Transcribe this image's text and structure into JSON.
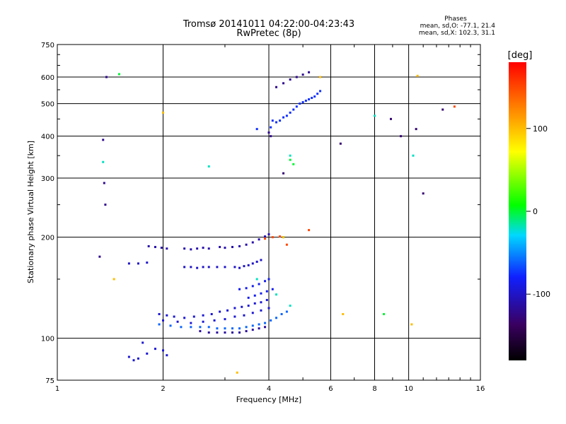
{
  "title": {
    "line1": "Tromsø 20141011 04:22:00-04:23:43",
    "line2": "RwPretec (8p)"
  },
  "stats": {
    "heading": "Phases",
    "line_o": "mean, sd,O: -77.1, 21.4",
    "line_x": "mean, sd,X: 102.3, 31.1"
  },
  "colorbar": {
    "unit_label": "[deg]",
    "ticks": [
      {
        "value": 100,
        "label": "100"
      },
      {
        "value": 0,
        "label": "0"
      },
      {
        "value": -100,
        "label": "-100"
      }
    ],
    "range": [
      -180,
      180
    ],
    "colors": [
      "#000000",
      "#3a0060",
      "#1020ff",
      "#00d8ff",
      "#00ff00",
      "#ffff00",
      "#ff8000",
      "#ff0000"
    ]
  },
  "chart_data": {
    "type": "scatter",
    "xlabel": "Frequency [MHz]",
    "ylabel": "Stationary phase Virtual Height [km]",
    "xscale": "log",
    "yscale": "log",
    "xlim": [
      1,
      16
    ],
    "ylim": [
      75,
      750
    ],
    "x_ticks": [
      1,
      2,
      4,
      6,
      8,
      10,
      16
    ],
    "y_ticks": [
      75,
      100,
      200,
      300,
      400,
      500,
      600,
      750
    ],
    "x_grid": [
      2,
      4,
      6,
      8,
      10
    ],
    "y_grid": [
      100,
      200,
      300,
      400,
      500,
      600
    ],
    "grid": true,
    "series": [
      {
        "phase": -95,
        "points": [
          [
            1.95,
            118
          ],
          [
            2.05,
            117
          ],
          [
            2.15,
            116
          ],
          [
            2.3,
            115
          ],
          [
            2.45,
            116
          ],
          [
            2.6,
            117
          ],
          [
            2.75,
            118
          ],
          [
            2.9,
            120
          ],
          [
            3.05,
            121
          ],
          [
            3.2,
            123
          ],
          [
            3.35,
            124
          ],
          [
            3.5,
            125
          ],
          [
            3.65,
            127
          ],
          [
            3.8,
            128
          ],
          [
            3.95,
            130
          ],
          [
            2.0,
            113
          ],
          [
            2.2,
            112
          ],
          [
            2.4,
            111
          ],
          [
            2.6,
            112
          ],
          [
            2.8,
            113
          ],
          [
            3.0,
            114
          ],
          [
            3.2,
            116
          ],
          [
            3.4,
            117
          ],
          [
            3.6,
            119
          ],
          [
            3.8,
            121
          ],
          [
            4.0,
            123
          ]
        ]
      },
      {
        "phase": -60,
        "points": [
          [
            1.95,
            110
          ],
          [
            2.1,
            109
          ],
          [
            2.25,
            108
          ],
          [
            2.4,
            108
          ],
          [
            2.55,
            108
          ],
          [
            2.7,
            108
          ],
          [
            2.85,
            107
          ],
          [
            3.0,
            107
          ],
          [
            3.15,
            107
          ],
          [
            3.3,
            107
          ],
          [
            3.45,
            108
          ],
          [
            3.6,
            109
          ],
          [
            3.75,
            110
          ],
          [
            3.9,
            111
          ],
          [
            4.05,
            113
          ],
          [
            4.2,
            115
          ],
          [
            4.35,
            118
          ],
          [
            4.5,
            120
          ]
        ]
      },
      {
        "phase": -115,
        "points": [
          [
            2.55,
            105
          ],
          [
            2.7,
            104
          ],
          [
            2.85,
            104
          ],
          [
            3.0,
            104
          ],
          [
            3.15,
            104
          ],
          [
            3.3,
            104
          ],
          [
            3.45,
            105
          ],
          [
            3.6,
            106
          ],
          [
            3.75,
            107
          ],
          [
            3.9,
            108
          ]
        ]
      },
      {
        "phase": -110,
        "points": [
          [
            1.82,
            188
          ],
          [
            1.9,
            187
          ],
          [
            1.98,
            186
          ],
          [
            2.05,
            185
          ],
          [
            2.3,
            185
          ],
          [
            2.4,
            184
          ],
          [
            2.5,
            185
          ],
          [
            2.6,
            186
          ],
          [
            2.7,
            185
          ],
          [
            2.9,
            187
          ],
          [
            3.0,
            186
          ],
          [
            3.15,
            187
          ],
          [
            3.3,
            188
          ],
          [
            3.45,
            190
          ],
          [
            3.6,
            193
          ],
          [
            3.75,
            197
          ],
          [
            3.9,
            201
          ],
          [
            4.0,
            204
          ]
        ]
      },
      {
        "phase": -100,
        "points": [
          [
            1.6,
            167
          ],
          [
            1.7,
            167
          ],
          [
            1.8,
            168
          ],
          [
            2.3,
            163
          ],
          [
            2.4,
            163
          ],
          [
            2.5,
            162
          ],
          [
            2.6,
            163
          ],
          [
            2.7,
            163
          ],
          [
            2.85,
            163
          ],
          [
            3.0,
            163
          ],
          [
            3.2,
            163
          ],
          [
            3.3,
            162
          ],
          [
            3.4,
            164
          ],
          [
            3.5,
            165
          ],
          [
            3.6,
            167
          ],
          [
            3.7,
            169
          ],
          [
            3.8,
            171
          ]
        ]
      },
      {
        "phase": -85,
        "points": [
          [
            3.3,
            140
          ],
          [
            3.45,
            141
          ],
          [
            3.6,
            143
          ],
          [
            3.75,
            145
          ],
          [
            3.9,
            148
          ],
          [
            4.0,
            150
          ],
          [
            3.5,
            132
          ],
          [
            3.65,
            134
          ],
          [
            3.8,
            136
          ],
          [
            3.95,
            138
          ],
          [
            4.1,
            140
          ]
        ]
      },
      {
        "phase": -75,
        "points": [
          [
            4.2,
            440
          ],
          [
            4.3,
            445
          ],
          [
            4.4,
            455
          ],
          [
            4.5,
            460
          ],
          [
            4.6,
            470
          ],
          [
            4.7,
            480
          ],
          [
            4.8,
            490
          ],
          [
            4.9,
            500
          ],
          [
            5.0,
            505
          ],
          [
            5.1,
            510
          ],
          [
            5.2,
            515
          ],
          [
            5.3,
            520
          ],
          [
            5.4,
            525
          ],
          [
            5.5,
            535
          ],
          [
            5.6,
            545
          ],
          [
            4.05,
            425
          ],
          [
            4.1,
            445
          ],
          [
            3.7,
            420
          ]
        ]
      },
      {
        "phase": -120,
        "points": [
          [
            4.2,
            560
          ],
          [
            4.4,
            575
          ],
          [
            4.6,
            590
          ],
          [
            4.8,
            600
          ],
          [
            5.0,
            610
          ],
          [
            5.2,
            620
          ],
          [
            4.0,
            410
          ],
          [
            4.05,
            400
          ],
          [
            1.38,
            600
          ],
          [
            1.35,
            390
          ],
          [
            1.36,
            290
          ],
          [
            1.37,
            250
          ],
          [
            1.32,
            175
          ]
        ]
      },
      {
        "phase": -95,
        "points": [
          [
            1.6,
            88
          ],
          [
            1.65,
            86
          ],
          [
            1.7,
            87
          ],
          [
            1.8,
            90
          ],
          [
            1.9,
            93
          ],
          [
            2.0,
            92
          ],
          [
            2.05,
            89
          ],
          [
            1.75,
            97
          ]
        ]
      },
      {
        "phase": 0,
        "points": [
          [
            4.6,
            340
          ],
          [
            4.7,
            330
          ],
          [
            1.5,
            612
          ],
          [
            8.5,
            118
          ],
          [
            4.4,
            200
          ]
        ]
      },
      {
        "phase": 100,
        "points": [
          [
            3.25,
            79
          ],
          [
            2.0,
            470
          ],
          [
            4.4,
            200
          ],
          [
            5.6,
            600
          ],
          [
            6.5,
            118
          ],
          [
            10.2,
            110
          ],
          [
            1.45,
            150
          ],
          [
            10.6,
            605
          ]
        ]
      },
      {
        "phase": 150,
        "points": [
          [
            3.9,
            198
          ],
          [
            4.1,
            200
          ],
          [
            4.3,
            201
          ],
          [
            5.2,
            210
          ],
          [
            4.5,
            190
          ],
          [
            13.5,
            490
          ]
        ]
      },
      {
        "phase": -20,
        "points": [
          [
            4.6,
            350
          ],
          [
            3.7,
            150
          ],
          [
            4.2,
            135
          ],
          [
            4.6,
            125
          ],
          [
            8.0,
            460
          ],
          [
            10.3,
            350
          ],
          [
            1.35,
            335
          ],
          [
            2.7,
            325
          ]
        ]
      },
      {
        "phase": -130,
        "points": [
          [
            4.4,
            310
          ],
          [
            6.4,
            380
          ],
          [
            11.0,
            270
          ],
          [
            12.5,
            480
          ],
          [
            9.5,
            400
          ],
          [
            10.5,
            420
          ],
          [
            8.9,
            450
          ]
        ]
      }
    ]
  }
}
